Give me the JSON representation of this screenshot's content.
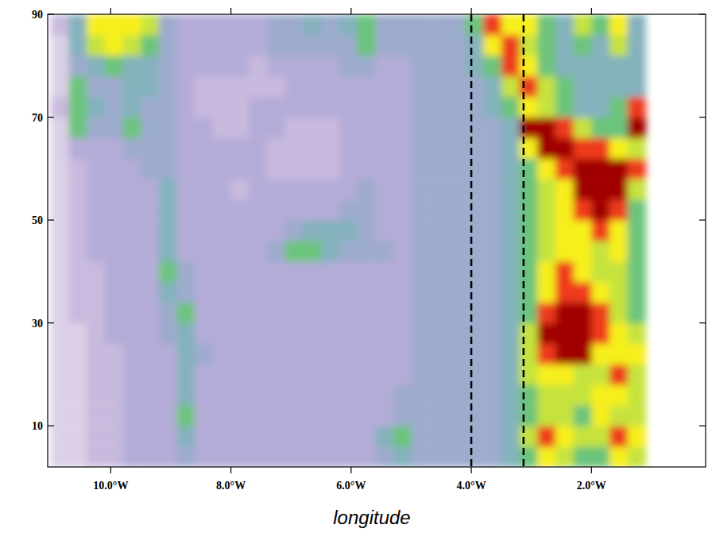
{
  "chart_data": {
    "type": "heatmap",
    "x_label": "longitude",
    "xlim": [
      -11.05,
      -0.1
    ],
    "ylim": [
      2,
      90
    ],
    "xticks": [
      {
        "value": -10,
        "label": "10.0°W"
      },
      {
        "value": -8,
        "label": "8.0°W"
      },
      {
        "value": -6,
        "label": "6.0°W"
      },
      {
        "value": -4,
        "label": "4.0°W"
      },
      {
        "value": -2,
        "label": "2.0°W"
      }
    ],
    "yticks": [
      10,
      30,
      50,
      70,
      90
    ],
    "vlines": [
      -4.0,
      -3.13
    ],
    "zlim": [
      0,
      10
    ],
    "x": [
      -10.85,
      -10.55,
      -10.25,
      -9.95,
      -9.65,
      -9.35,
      -9.05,
      -8.75,
      -8.45,
      -8.15,
      -7.85,
      -7.55,
      -7.25,
      -6.95,
      -6.65,
      -6.35,
      -6.05,
      -5.75,
      -5.45,
      -5.15,
      -4.85,
      -4.55,
      -4.25,
      -3.95,
      -3.65,
      -3.35,
      -3.05,
      -2.75,
      -2.45,
      -2.15,
      -1.85,
      -1.55,
      -1.25
    ],
    "y": [
      4,
      8,
      12,
      16,
      20,
      24,
      28,
      32,
      36,
      40,
      44,
      48,
      52,
      56,
      60,
      64,
      68,
      72,
      76,
      80,
      84,
      88
    ],
    "z": [
      [
        1,
        1,
        2,
        2,
        3,
        3,
        3,
        4,
        3,
        3,
        3,
        3,
        3,
        3,
        3,
        3,
        3,
        3,
        4,
        5,
        4,
        4,
        4,
        4,
        4,
        5,
        6,
        8,
        7,
        6,
        6,
        8,
        7
      ],
      [
        1,
        1,
        2,
        2,
        3,
        3,
        3,
        5,
        3,
        3,
        3,
        3,
        3,
        3,
        3,
        3,
        3,
        3,
        5,
        6,
        4,
        4,
        4,
        4,
        4,
        5,
        7,
        9,
        8,
        7,
        7,
        9,
        8
      ],
      [
        1,
        1,
        2,
        2,
        3,
        3,
        3,
        6,
        3,
        3,
        3,
        3,
        3,
        3,
        3,
        3,
        3,
        3,
        3,
        4,
        4,
        4,
        4,
        4,
        4,
        5,
        6,
        7,
        7,
        6,
        8,
        7,
        7
      ],
      [
        1,
        1,
        2,
        2,
        3,
        3,
        3,
        5,
        3,
        3,
        3,
        3,
        3,
        3,
        3,
        3,
        3,
        3,
        3,
        4,
        4,
        4,
        4,
        4,
        4,
        5,
        6,
        7,
        7,
        7,
        8,
        8,
        7
      ],
      [
        1,
        1,
        2,
        2,
        3,
        3,
        3,
        5,
        3,
        3,
        3,
        3,
        3,
        3,
        3,
        3,
        3,
        3,
        3,
        3,
        4,
        4,
        4,
        4,
        4,
        5,
        7,
        8,
        8,
        7,
        7,
        9,
        7
      ],
      [
        1,
        1,
        2,
        2,
        3,
        3,
        3,
        5,
        4,
        3,
        3,
        3,
        3,
        3,
        3,
        3,
        3,
        3,
        3,
        3,
        4,
        4,
        4,
        4,
        4,
        5,
        7,
        9,
        10,
        10,
        8,
        8,
        8
      ],
      [
        1,
        1,
        2,
        3,
        3,
        3,
        4,
        5,
        3,
        3,
        3,
        3,
        3,
        3,
        3,
        3,
        3,
        3,
        3,
        3,
        4,
        4,
        4,
        4,
        4,
        5,
        7,
        10,
        10,
        10,
        9,
        8,
        7
      ],
      [
        1,
        2,
        2,
        3,
        3,
        3,
        4,
        6,
        3,
        3,
        3,
        3,
        3,
        3,
        3,
        3,
        3,
        3,
        3,
        3,
        4,
        4,
        4,
        4,
        4,
        5,
        6,
        9,
        10,
        10,
        9,
        7,
        6
      ],
      [
        1,
        2,
        2,
        3,
        3,
        3,
        5,
        4,
        3,
        3,
        3,
        3,
        3,
        3,
        3,
        3,
        3,
        3,
        3,
        3,
        4,
        4,
        4,
        4,
        4,
        5,
        6,
        8,
        9,
        9,
        8,
        7,
        6
      ],
      [
        1,
        2,
        2,
        3,
        3,
        3,
        6,
        4,
        3,
        3,
        3,
        3,
        3,
        3,
        3,
        3,
        3,
        3,
        3,
        3,
        4,
        4,
        4,
        4,
        4,
        5,
        6,
        8,
        9,
        8,
        7,
        7,
        6
      ],
      [
        1,
        2,
        3,
        3,
        3,
        3,
        5,
        3,
        3,
        3,
        3,
        3,
        4,
        6,
        6,
        5,
        4,
        4,
        4,
        3,
        4,
        4,
        4,
        4,
        4,
        5,
        6,
        7,
        8,
        8,
        7,
        8,
        6
      ],
      [
        1,
        2,
        3,
        3,
        3,
        3,
        5,
        3,
        3,
        3,
        3,
        3,
        3,
        4,
        5,
        5,
        5,
        4,
        3,
        3,
        4,
        4,
        4,
        4,
        4,
        5,
        6,
        7,
        8,
        8,
        9,
        8,
        6
      ],
      [
        1,
        2,
        3,
        3,
        3,
        3,
        5,
        3,
        3,
        3,
        3,
        3,
        3,
        3,
        3,
        3,
        4,
        4,
        3,
        3,
        4,
        4,
        4,
        4,
        4,
        5,
        6,
        7,
        8,
        9,
        10,
        9,
        6
      ],
      [
        1,
        2,
        3,
        3,
        3,
        3,
        5,
        3,
        3,
        3,
        2,
        3,
        3,
        3,
        3,
        3,
        3,
        4,
        3,
        3,
        4,
        4,
        4,
        4,
        4,
        5,
        6,
        7,
        8,
        10,
        10,
        10,
        7
      ],
      [
        1,
        2,
        3,
        3,
        3,
        4,
        4,
        3,
        3,
        3,
        3,
        3,
        2,
        2,
        2,
        2,
        3,
        3,
        3,
        3,
        4,
        4,
        4,
        4,
        4,
        5,
        6,
        8,
        9,
        10,
        10,
        10,
        9
      ],
      [
        1,
        3,
        3,
        3,
        4,
        4,
        4,
        3,
        3,
        3,
        3,
        3,
        2,
        2,
        2,
        2,
        3,
        3,
        3,
        3,
        4,
        4,
        4,
        4,
        4,
        5,
        8,
        10,
        10,
        9,
        9,
        8,
        7
      ],
      [
        1,
        6,
        4,
        4,
        6,
        4,
        4,
        3,
        3,
        2,
        2,
        3,
        3,
        2,
        2,
        2,
        3,
        3,
        3,
        3,
        4,
        4,
        4,
        4,
        4,
        5,
        10,
        10,
        9,
        7,
        6,
        6,
        10
      ],
      [
        2,
        6,
        5,
        4,
        5,
        4,
        4,
        3,
        2,
        2,
        2,
        3,
        3,
        3,
        3,
        3,
        3,
        3,
        3,
        3,
        4,
        4,
        4,
        4,
        5,
        6,
        8,
        7,
        6,
        5,
        5,
        6,
        9
      ],
      [
        1,
        6,
        4,
        4,
        5,
        5,
        4,
        3,
        2,
        2,
        2,
        2,
        2,
        3,
        3,
        3,
        3,
        3,
        3,
        3,
        4,
        4,
        4,
        4,
        5,
        7,
        9,
        7,
        6,
        5,
        5,
        5,
        5
      ],
      [
        1,
        4,
        5,
        6,
        5,
        5,
        4,
        3,
        3,
        3,
        3,
        2,
        3,
        3,
        3,
        3,
        4,
        4,
        3,
        3,
        4,
        4,
        4,
        5,
        6,
        9,
        8,
        6,
        5,
        5,
        5,
        5,
        5
      ],
      [
        1,
        5,
        7,
        8,
        7,
        6,
        4,
        3,
        3,
        3,
        3,
        3,
        4,
        4,
        4,
        4,
        4,
        6,
        4,
        4,
        4,
        4,
        4,
        5,
        8,
        9,
        7,
        6,
        5,
        6,
        5,
        7,
        5
      ],
      [
        2,
        5,
        8,
        8,
        8,
        7,
        4,
        3,
        3,
        3,
        3,
        3,
        4,
        4,
        5,
        4,
        5,
        6,
        4,
        4,
        4,
        4,
        4,
        6,
        9,
        8,
        8,
        6,
        5,
        7,
        6,
        8,
        5
      ]
    ]
  }
}
